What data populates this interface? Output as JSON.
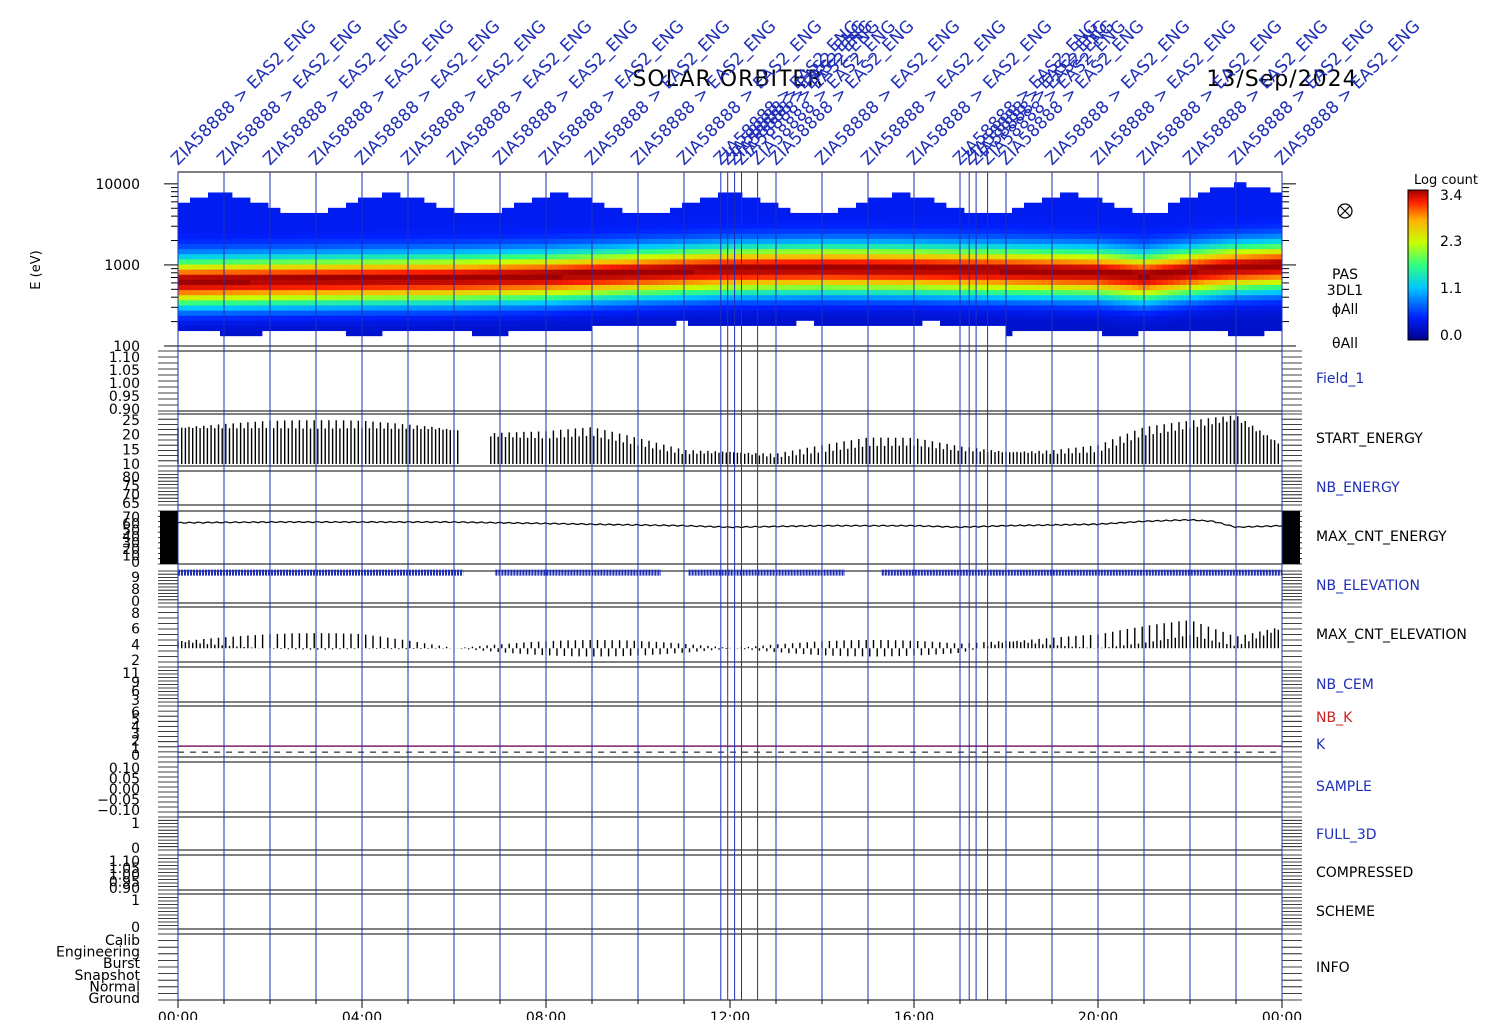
{
  "header": {
    "mission": "SOLAR ORBITER",
    "date": "13/Sep/2024"
  },
  "ylabel": "E (eV)",
  "colorbar": {
    "label": "Log count",
    "ticks": [
      "3.4",
      "2.3",
      "1.1",
      "0.0"
    ]
  },
  "spectrogram_info": [
    "PAS",
    "3DL1",
    "ϕAll",
    "θAll"
  ],
  "x_ticks": [
    "00:00",
    "04:00",
    "08:00",
    "12:00",
    "16:00",
    "20:00",
    "00:00"
  ],
  "event_marker": {
    "label": "ZIA58888 > EAS2_ENG",
    "times_h": [
      0.0,
      1.0,
      2.0,
      3.0,
      4.0,
      5.0,
      6.0,
      7.0,
      8.0,
      9.0,
      10.0,
      11.0,
      11.8,
      11.95,
      12.1,
      12.25,
      12.6,
      13.0,
      14.0,
      15.0,
      16.0,
      17.0,
      17.2,
      17.35,
      17.6,
      18.0,
      19.0,
      20.0,
      21.0,
      22.0,
      23.0,
      24.0
    ]
  },
  "colors": {
    "marker": "#1f2fb8",
    "plot": "#000000",
    "k_line": "#7a1f6a",
    "nb_k_label": "#cc2222"
  },
  "chart_data": [
    {
      "type": "heatmap",
      "panel": "spectrogram",
      "ylabel": "E (eV)",
      "yscale": "log",
      "ylim": [
        100,
        14000
      ],
      "yticks": [
        "10000",
        "1000",
        "100"
      ],
      "xlim_h": [
        0,
        24
      ],
      "colorbar_range": [
        0.0,
        3.4
      ],
      "peak_energy_eV": {
        "x_h": [
          0,
          2,
          4,
          6,
          8,
          10,
          12,
          14,
          16,
          18,
          20,
          21,
          22,
          23,
          24
        ],
        "values": [
          600,
          620,
          640,
          660,
          700,
          780,
          850,
          880,
          860,
          820,
          780,
          700,
          800,
          900,
          950
        ]
      }
    },
    {
      "type": "line",
      "name": "Field_1",
      "yticks": [
        "1.10",
        "1.05",
        "1.00",
        "0.95",
        "0.90"
      ],
      "ylim": [
        0.88,
        1.12
      ],
      "x_h": [],
      "values": []
    },
    {
      "type": "line",
      "name": "START_ENERGY",
      "yticks": [
        "25",
        "20",
        "15",
        "10"
      ],
      "ylim": [
        10,
        25
      ],
      "x_h": [
        0,
        2,
        4,
        5.5,
        6.3,
        6.8,
        8,
        9,
        10,
        11,
        12,
        13,
        14,
        15,
        16,
        17,
        18,
        19,
        20,
        21,
        22,
        23,
        24
      ],
      "values": [
        21,
        22,
        22,
        21,
        20,
        19,
        19,
        20,
        17,
        14,
        14,
        13,
        15,
        17,
        17,
        15,
        14,
        14,
        15,
        20,
        22,
        24,
        16
      ]
    },
    {
      "type": "line",
      "name": "NB_ENERGY",
      "yticks": [
        "80",
        "75",
        "70",
        "65"
      ],
      "ylim": [
        62,
        82
      ],
      "x_h": [],
      "values": []
    },
    {
      "type": "line",
      "name": "MAX_CNT_ENERGY",
      "yticks": [
        "70",
        "60",
        "50",
        "40",
        "30",
        "20",
        "10",
        "0"
      ],
      "ylim": [
        0,
        72
      ],
      "x_h": [
        0,
        2,
        4,
        6,
        8,
        10,
        11,
        12,
        13,
        14,
        16,
        17,
        18,
        20,
        21,
        22,
        22.5,
        23,
        24
      ],
      "values": [
        56,
        57,
        57,
        57,
        55,
        53,
        52,
        50,
        51,
        52,
        52,
        50,
        52,
        54,
        58,
        60,
        58,
        50,
        52
      ]
    },
    {
      "type": "scatter",
      "name": "NB_ELEVATION",
      "yticks": [
        "9",
        "8",
        "0"
      ],
      "ylim": [
        0,
        9.5
      ],
      "x_h": [
        0,
        24
      ],
      "values": [
        9,
        9
      ]
    },
    {
      "type": "line",
      "name": "MAX_CNT_ELEVATION",
      "yticks": [
        "8",
        "6",
        "4",
        "2"
      ],
      "ylim": [
        1,
        9
      ],
      "x_h": [
        0,
        1,
        2,
        3,
        4,
        5,
        6,
        7,
        8,
        9,
        10,
        11,
        12,
        13,
        14,
        15,
        16,
        17,
        18,
        19,
        20,
        21,
        22,
        23,
        24
      ],
      "values": [
        4,
        4,
        4,
        4,
        4,
        3.5,
        3,
        3,
        3,
        3,
        3,
        3,
        3,
        3,
        3,
        3,
        3,
        3,
        4,
        4,
        4,
        5,
        6,
        4,
        6
      ]
    },
    {
      "type": "line",
      "name": "NB_CEM",
      "yticks": [
        "11",
        "9",
        "6",
        "3"
      ],
      "ylim": [
        0,
        11.5
      ],
      "x_h": [],
      "values": []
    },
    {
      "type": "line",
      "name": "NB_K",
      "yticks": [
        "6",
        "5",
        "4",
        "3",
        "2",
        "1",
        "0"
      ],
      "ylim": [
        -0.5,
        6.5
      ],
      "x_h": [
        0,
        24
      ],
      "values": [
        1,
        1
      ]
    },
    {
      "type": "line",
      "name": "SAMPLE",
      "yticks": [
        "0.10",
        "0.05",
        "0.00",
        "−0.05",
        "−0.10"
      ],
      "ylim": [
        -0.12,
        0.12
      ],
      "x_h": [],
      "values": []
    },
    {
      "type": "line",
      "name": "FULL_3D",
      "yticks": [
        "1",
        "0"
      ],
      "ylim": [
        -0.2,
        1.3
      ],
      "x_h": [],
      "values": []
    },
    {
      "type": "line",
      "name": "COMPRESSED",
      "yticks": [
        "1.10",
        "1.05",
        "1.00",
        "0.95",
        "0.90"
      ],
      "ylim": [
        0.88,
        1.12
      ],
      "x_h": [],
      "values": []
    },
    {
      "type": "line",
      "name": "SCHEME",
      "yticks": [
        "1",
        "0"
      ],
      "ylim": [
        -0.2,
        1.3
      ],
      "x_h": [],
      "values": []
    },
    {
      "type": "line",
      "name": "INFO",
      "yticks": [
        "Calib",
        "Engineering",
        "Burst",
        "Snapshot",
        "Normal",
        "Ground"
      ],
      "ylim": [
        0,
        5
      ],
      "x_h": [],
      "values": []
    }
  ]
}
